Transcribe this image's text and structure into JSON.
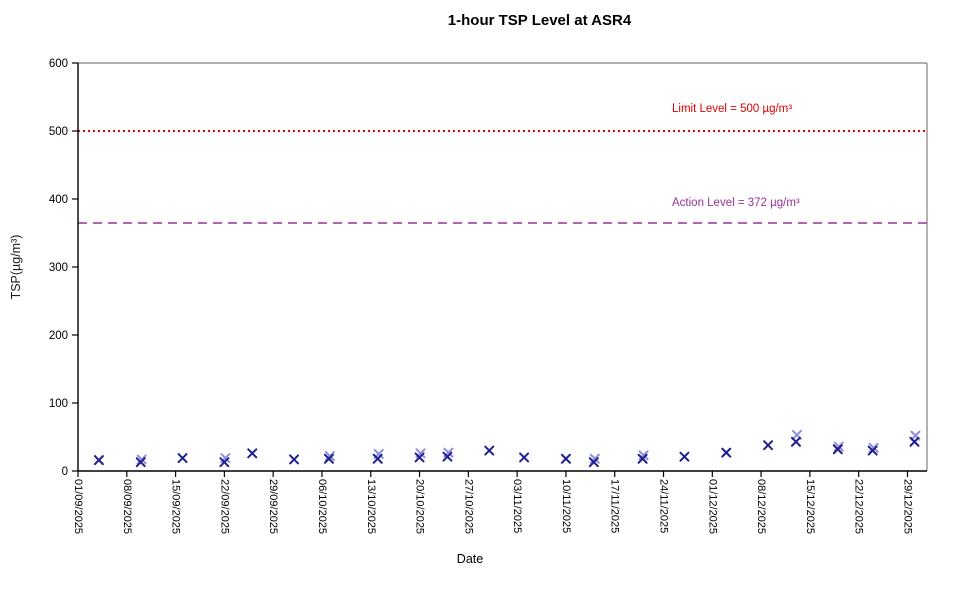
{
  "chart_data": {
    "type": "scatter",
    "title": "1-hour TSP Level at ASR4",
    "xlabel": "Date",
    "ylabel": "TSP(µg/m³)",
    "ylim": [
      0,
      600
    ],
    "y_ticks": [
      0,
      100,
      200,
      300,
      400,
      500,
      600
    ],
    "x_tick_labels": [
      "01/09/2025",
      "08/09/2025",
      "15/09/2025",
      "22/09/2025",
      "29/09/2025",
      "06/10/2025",
      "13/10/2025",
      "20/10/2025",
      "27/10/2025",
      "03/11/2025",
      "10/11/2025",
      "17/11/2025",
      "24/11/2025",
      "01/12/2025",
      "08/12/2025",
      "15/12/2025",
      "22/12/2025",
      "29/12/2025"
    ],
    "x_axis_start_date": "01/09/2025",
    "grid": false,
    "legend_position": "none",
    "limit_line": {
      "label": "Limit Level  = 500 µg/m³",
      "value": 500,
      "color": "#e00000",
      "style": "dotted"
    },
    "action_line": {
      "label": "Action Level  = 372 µg/m³",
      "value": 372,
      "color": "#993399",
      "style": "dashed"
    },
    "marker": {
      "shape": "x",
      "primary_color": "#1f1f8f",
      "secondary_color": "#8e8edd"
    },
    "points": [
      {
        "date": "04/09/2025",
        "values": [
          16
        ]
      },
      {
        "date": "10/09/2025",
        "values": [
          13,
          17
        ]
      },
      {
        "date": "16/09/2025",
        "values": [
          19
        ]
      },
      {
        "date": "22/09/2025",
        "values": [
          13,
          19
        ]
      },
      {
        "date": "26/09/2025",
        "values": [
          26
        ]
      },
      {
        "date": "02/10/2025",
        "values": [
          17
        ]
      },
      {
        "date": "07/10/2025",
        "values": [
          18,
          22
        ]
      },
      {
        "date": "14/10/2025",
        "values": [
          18,
          25
        ]
      },
      {
        "date": "20/10/2025",
        "values": [
          20,
          26
        ]
      },
      {
        "date": "24/10/2025",
        "values": [
          21,
          27
        ]
      },
      {
        "date": "30/10/2025",
        "values": [
          30
        ]
      },
      {
        "date": "04/11/2025",
        "values": [
          20
        ]
      },
      {
        "date": "10/11/2025",
        "values": [
          18
        ]
      },
      {
        "date": "14/11/2025",
        "values": [
          13,
          18
        ]
      },
      {
        "date": "21/11/2025",
        "values": [
          18,
          23
        ]
      },
      {
        "date": "27/11/2025",
        "values": [
          21
        ]
      },
      {
        "date": "03/12/2025",
        "values": [
          27
        ]
      },
      {
        "date": "09/12/2025",
        "values": [
          38
        ]
      },
      {
        "date": "13/12/2025",
        "values": [
          43,
          53
        ]
      },
      {
        "date": "19/12/2025",
        "values": [
          32,
          36
        ]
      },
      {
        "date": "24/12/2025",
        "values": [
          30,
          34
        ]
      },
      {
        "date": "30/12/2025",
        "values": [
          43,
          52
        ]
      }
    ],
    "axis_colors": {
      "primary_axis": "#000000",
      "frame": "#808080"
    }
  }
}
